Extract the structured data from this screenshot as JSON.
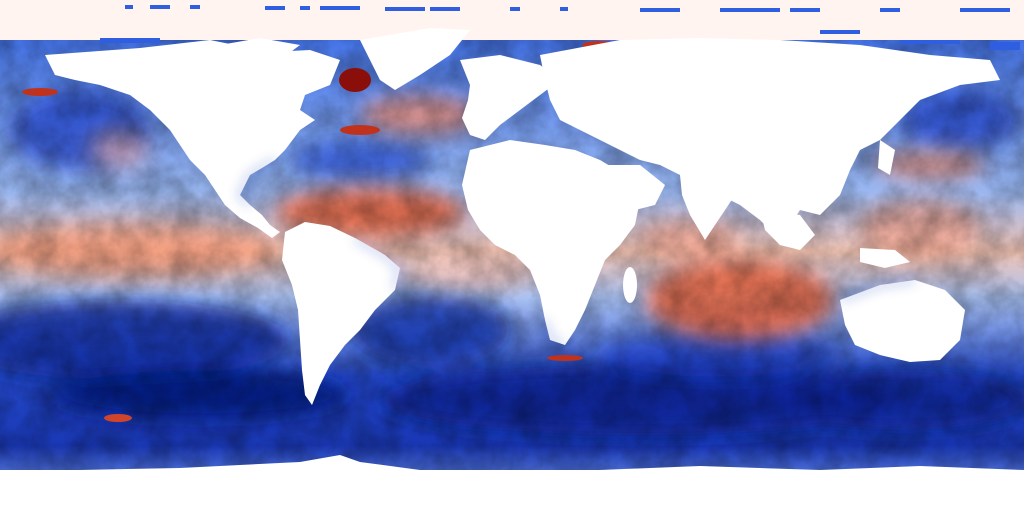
{
  "map": {
    "projection": "equirectangular",
    "colormap": {
      "deep_cold": "#0a1f8f",
      "cold": "#2f5fe0",
      "cool": "#8fb0f5",
      "neutral": "#f4f4f8",
      "warm": "#f7b39a",
      "hot": "#e0502b",
      "very_hot": "#8a0f0a"
    },
    "land_color": "#ffffff",
    "ice_color": "#fff4f0"
  }
}
